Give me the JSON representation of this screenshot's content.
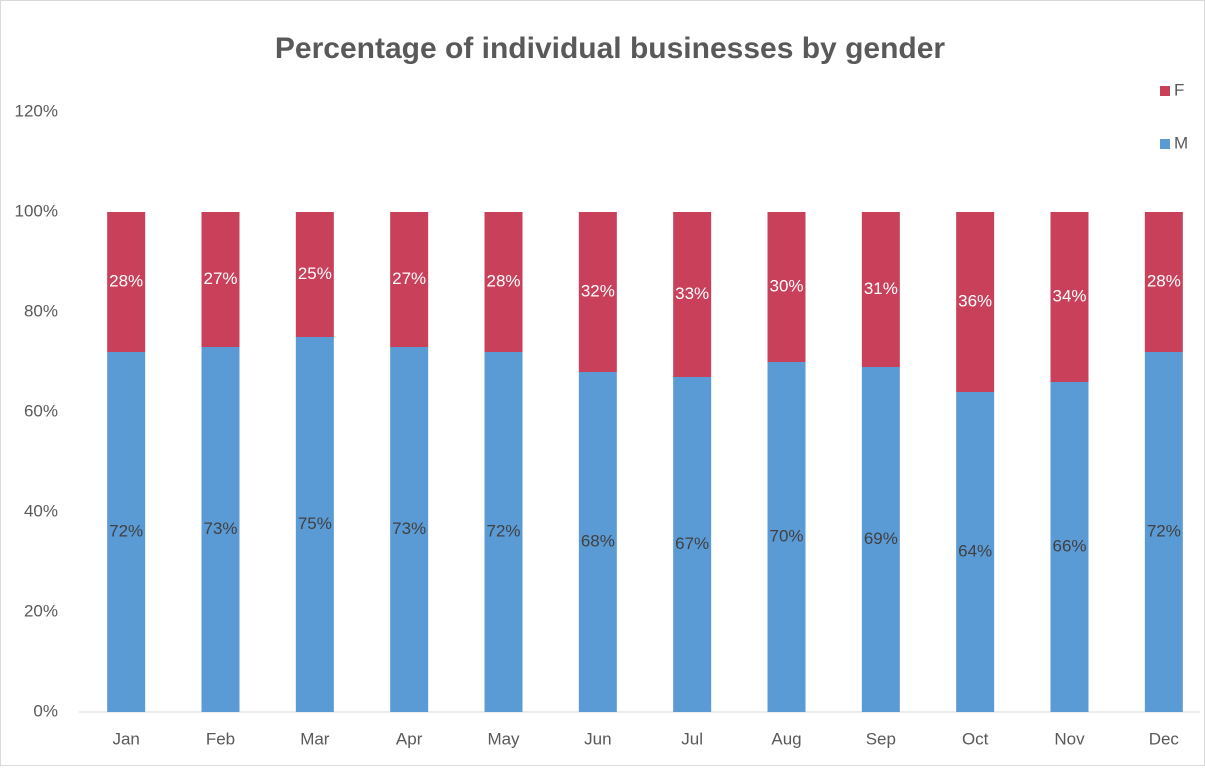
{
  "chart_data": {
    "type": "stacked_bar",
    "title": "Percentage of individual businesses by gender",
    "categories": [
      "Jan",
      "Feb",
      "Mar",
      "Apr",
      "May",
      "Jun",
      "Jul",
      "Aug",
      "Sep",
      "Oct",
      "Nov",
      "Dec"
    ],
    "series": [
      {
        "name": "M",
        "color": "#5b9bd5",
        "values": [
          72,
          73,
          75,
          73,
          72,
          68,
          67,
          70,
          69,
          64,
          66,
          72
        ],
        "value_labels": [
          "72%",
          "73%",
          "75%",
          "73%",
          "72%",
          "68%",
          "67%",
          "70%",
          "69%",
          "64%",
          "66%",
          "72%"
        ]
      },
      {
        "name": "F",
        "color": "#c9405a",
        "values": [
          28,
          27,
          25,
          27,
          28,
          32,
          33,
          30,
          31,
          36,
          34,
          28
        ],
        "value_labels": [
          "28%",
          "27%",
          "25%",
          "27%",
          "28%",
          "32%",
          "33%",
          "30%",
          "31%",
          "36%",
          "34%",
          "28%"
        ]
      }
    ],
    "ylim": [
      0,
      120
    ],
    "yticks": [
      {
        "value": 0,
        "label": "0%"
      },
      {
        "value": 20,
        "label": "20%"
      },
      {
        "value": 40,
        "label": "40%"
      },
      {
        "value": 60,
        "label": "60%"
      },
      {
        "value": 80,
        "label": "80%"
      },
      {
        "value": 100,
        "label": "100%"
      },
      {
        "value": 120,
        "label": "120%"
      }
    ],
    "grid": false,
    "legend": "top-right"
  }
}
